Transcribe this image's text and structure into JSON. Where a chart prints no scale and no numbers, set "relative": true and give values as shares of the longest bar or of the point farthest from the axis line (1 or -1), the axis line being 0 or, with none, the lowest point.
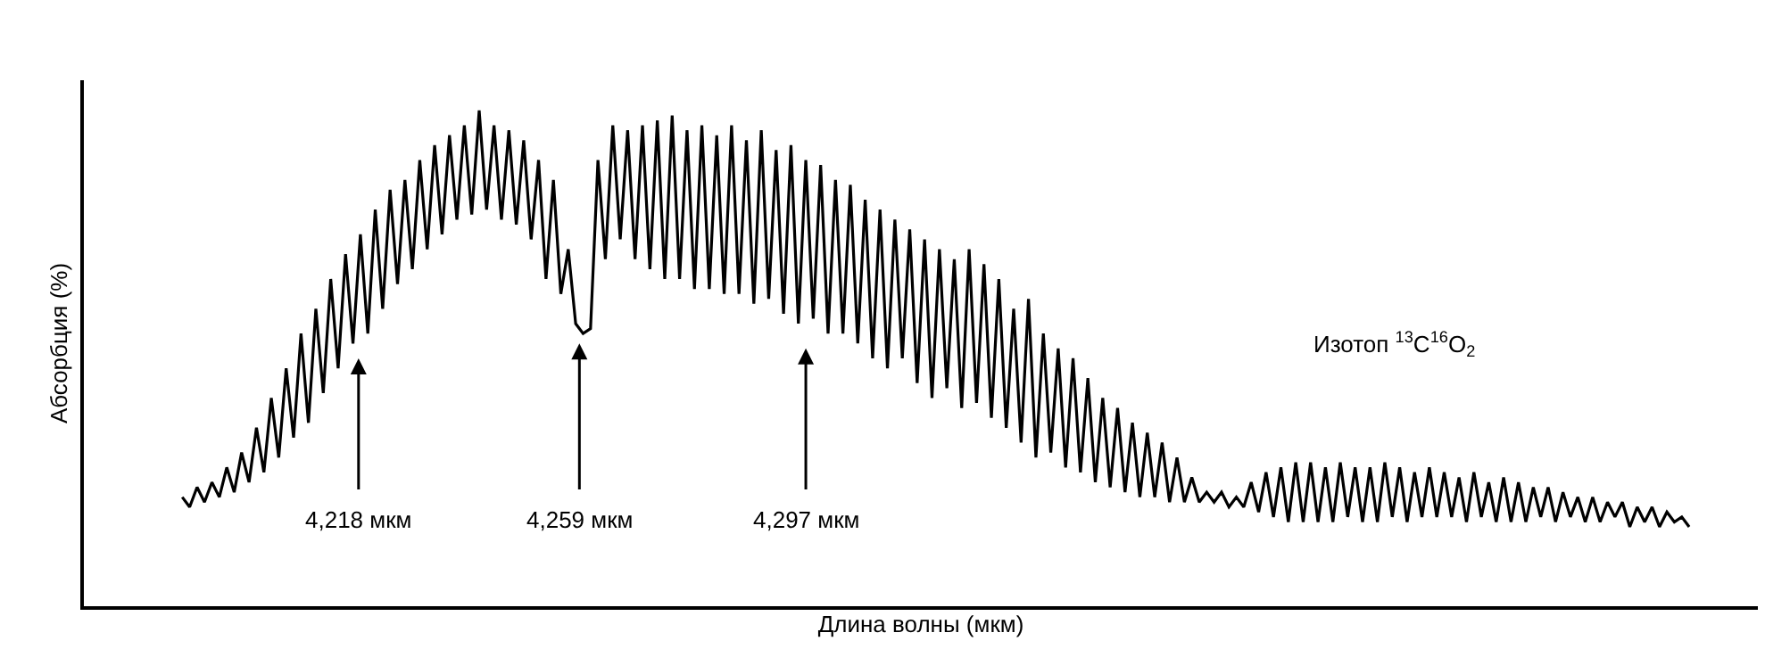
{
  "chart_data": {
    "type": "line",
    "relative": true,
    "xlabel": "Длина волны (мкм)",
    "ylabel": "Абсорбция (%)",
    "color": "#000000",
    "marker": "none",
    "line_style": "solid",
    "legend": false,
    "categories": [
      null,
      null,
      null,
      null,
      null,
      null,
      null,
      null,
      null,
      null,
      null,
      null,
      null,
      null,
      null,
      null,
      null,
      null,
      null,
      null,
      null,
      null,
      null,
      null,
      null,
      null,
      null,
      null,
      null,
      null,
      null,
      null,
      null,
      null,
      null,
      null,
      null,
      null,
      null,
      null,
      null,
      null,
      null,
      null,
      null,
      null,
      null,
      null,
      null,
      null,
      null,
      null,
      null,
      null,
      null,
      null,
      null,
      null,
      null,
      null,
      null,
      null,
      null,
      null,
      null,
      null,
      null,
      null,
      null,
      null,
      null,
      null,
      null,
      null,
      null,
      null,
      null,
      null,
      null,
      null,
      null,
      null,
      null,
      null,
      null,
      null,
      null,
      null,
      null,
      null,
      null,
      null,
      null,
      null,
      null,
      null,
      null,
      null,
      null,
      null,
      null,
      null,
      null,
      null,
      null,
      null,
      null,
      null,
      null,
      null,
      null,
      null,
      null,
      null,
      null,
      null,
      null,
      null,
      null,
      null,
      null,
      null,
      null,
      null,
      null,
      null,
      null,
      null,
      null,
      null,
      null,
      null,
      null,
      null,
      null,
      null,
      null,
      null,
      null,
      null,
      null,
      null,
      null,
      null,
      null,
      null,
      null,
      null,
      null,
      null,
      null,
      null,
      null,
      null,
      null,
      null,
      null,
      null,
      null,
      null,
      null,
      null,
      null,
      null,
      null,
      null,
      null,
      null,
      null,
      null,
      null,
      null,
      null,
      null,
      null,
      null,
      null,
      null,
      null,
      null,
      null,
      null,
      null,
      null,
      null,
      null,
      null,
      null,
      null,
      null,
      null,
      null,
      null,
      null,
      null,
      null,
      null,
      null,
      null,
      null,
      null,
      null,
      null,
      null
    ],
    "values": [
      0.22,
      0.2,
      0.24,
      0.21,
      0.25,
      0.22,
      0.28,
      0.23,
      0.31,
      0.25,
      0.36,
      0.27,
      0.42,
      0.3,
      0.48,
      0.34,
      0.55,
      0.37,
      0.6,
      0.43,
      0.66,
      0.48,
      0.71,
      0.53,
      0.75,
      0.55,
      0.8,
      0.6,
      0.84,
      0.65,
      0.86,
      0.68,
      0.9,
      0.72,
      0.93,
      0.75,
      0.95,
      0.78,
      0.97,
      0.79,
      1.0,
      0.8,
      0.97,
      0.78,
      0.96,
      0.77,
      0.94,
      0.74,
      0.9,
      0.66,
      0.86,
      0.63,
      0.72,
      0.57,
      0.55,
      0.56,
      0.9,
      0.7,
      0.97,
      0.74,
      0.96,
      0.7,
      0.97,
      0.68,
      0.98,
      0.66,
      0.99,
      0.66,
      0.96,
      0.64,
      0.97,
      0.64,
      0.95,
      0.63,
      0.97,
      0.63,
      0.94,
      0.61,
      0.96,
      0.62,
      0.92,
      0.59,
      0.93,
      0.57,
      0.9,
      0.58,
      0.89,
      0.55,
      0.86,
      0.55,
      0.85,
      0.53,
      0.82,
      0.5,
      0.8,
      0.48,
      0.78,
      0.5,
      0.76,
      0.45,
      0.74,
      0.42,
      0.72,
      0.44,
      0.7,
      0.4,
      0.72,
      0.41,
      0.69,
      0.38,
      0.66,
      0.36,
      0.6,
      0.33,
      0.62,
      0.3,
      0.55,
      0.31,
      0.52,
      0.28,
      0.5,
      0.27,
      0.46,
      0.25,
      0.42,
      0.24,
      0.4,
      0.23,
      0.37,
      0.22,
      0.35,
      0.22,
      0.33,
      0.21,
      0.3,
      0.21,
      0.26,
      0.21,
      0.23,
      0.21,
      0.23,
      0.2,
      0.22,
      0.2,
      0.25,
      0.19,
      0.27,
      0.18,
      0.28,
      0.17,
      0.29,
      0.17,
      0.29,
      0.17,
      0.28,
      0.17,
      0.29,
      0.18,
      0.28,
      0.17,
      0.28,
      0.17,
      0.29,
      0.18,
      0.28,
      0.17,
      0.27,
      0.18,
      0.28,
      0.18,
      0.27,
      0.18,
      0.26,
      0.17,
      0.27,
      0.18,
      0.25,
      0.17,
      0.26,
      0.17,
      0.25,
      0.17,
      0.24,
      0.18,
      0.24,
      0.17,
      0.23,
      0.18,
      0.22,
      0.17,
      0.22,
      0.17,
      0.21,
      0.18,
      0.21,
      0.16,
      0.2,
      0.17,
      0.2,
      0.16,
      0.19,
      0.17,
      0.18,
      0.16
    ],
    "annotations": [
      "4,218 мкм",
      "4,259 мкм",
      "4,297 мкм",
      "Изотоп $^{13}$C$^{16}$O$_{2}$"
    ]
  }
}
